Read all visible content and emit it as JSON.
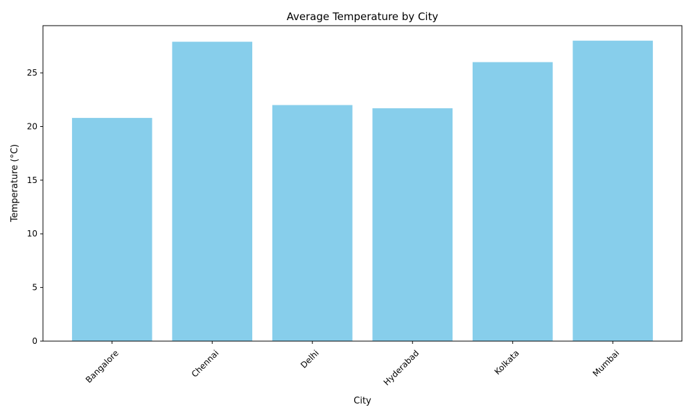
{
  "chart_data": {
    "type": "bar",
    "title": "Average Temperature by City",
    "xlabel": "City",
    "ylabel": "Temperature (°C)",
    "categories": [
      "Bangalore",
      "Chennai",
      "Delhi",
      "Hyderabad",
      "Kolkata",
      "Mumbai"
    ],
    "values": [
      20.8,
      27.9,
      22.0,
      21.7,
      26.0,
      28.0
    ],
    "ylim": [
      0,
      29.4
    ],
    "yticks": [
      0,
      5,
      10,
      15,
      20,
      25
    ],
    "grid": false,
    "bar_color": "#87ceeb",
    "x_tick_rotation": 45
  }
}
